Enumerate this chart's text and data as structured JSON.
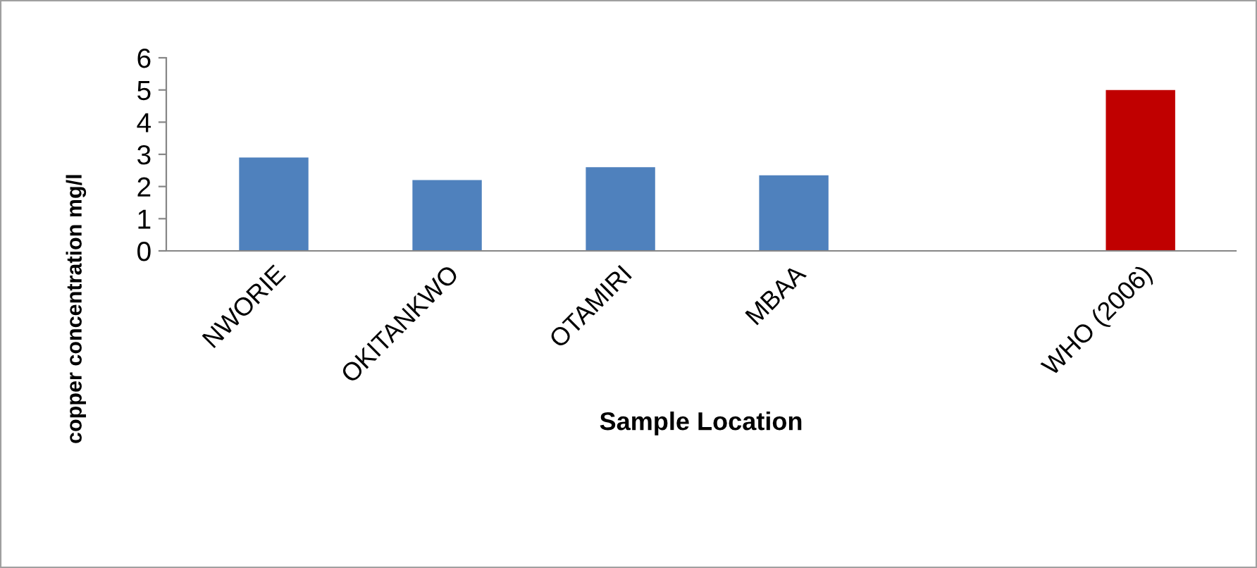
{
  "chart_data": {
    "type": "bar",
    "xlabel": "Sample Location",
    "ylabel": "copper concentration mg/l",
    "categories": [
      "NWORIE",
      "OKITANKWO",
      "OTAMIRI",
      "MBAA",
      null,
      "WHO (2006)"
    ],
    "values": [
      2.9,
      2.2,
      2.6,
      2.35,
      null,
      5
    ],
    "colors": [
      "#4f81bd",
      "#4f81bd",
      "#4f81bd",
      "#4f81bd",
      "#4f81bd",
      "#c00000"
    ],
    "ylim": [
      0,
      6
    ],
    "yticks": [
      0,
      1,
      2,
      3,
      4,
      5,
      6
    ],
    "grid": false,
    "legend": false
  }
}
